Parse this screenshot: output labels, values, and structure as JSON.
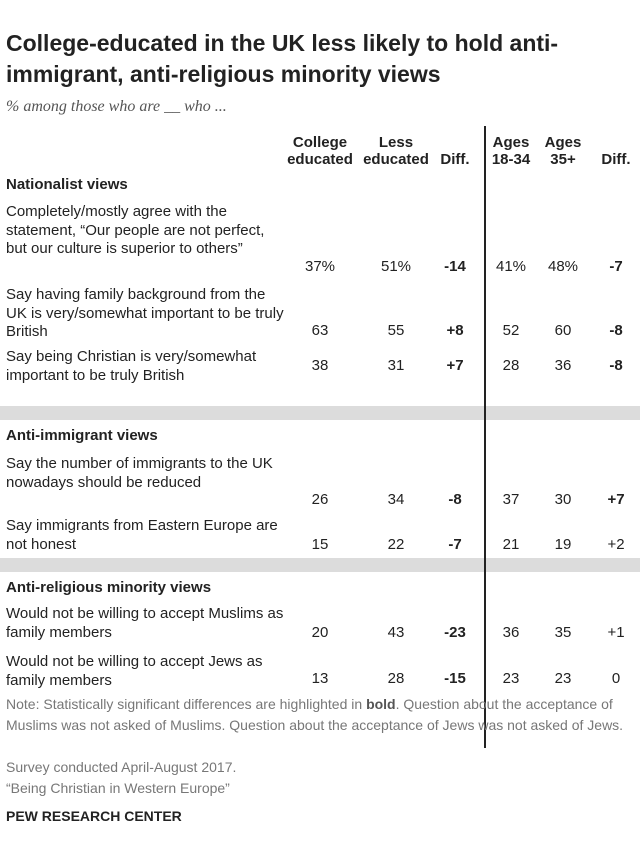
{
  "title": "College-educated in the UK less likely to hold anti-immigrant, anti-religious minority views",
  "subtitle": "% among those who are __ who ...",
  "columns": [
    {
      "l1": "College",
      "l2": "educated"
    },
    {
      "l1": "Less",
      "l2": "educated"
    },
    {
      "l1": "",
      "l2": "Diff."
    },
    {
      "l1": "Ages",
      "l2": "18-34"
    },
    {
      "l1": "Ages",
      "l2": "35+"
    },
    {
      "l1": "",
      "l2": "Diff."
    }
  ],
  "sections": [
    {
      "name": "Nationalist views",
      "rows": [
        {
          "label": "Completely/mostly agree with the statement, “Our people are not perfect, but our culture is superior to others”",
          "values": [
            "37%",
            "51%",
            "-14",
            "41%",
            "48%",
            "-7"
          ],
          "bold": [
            false,
            false,
            true,
            false,
            false,
            true
          ]
        },
        {
          "label": "Say having family background from the UK is very/somewhat important to be truly British",
          "values": [
            "63",
            "55",
            "+8",
            "52",
            "60",
            "-8"
          ],
          "bold": [
            false,
            false,
            true,
            false,
            false,
            true
          ]
        },
        {
          "label": "Say being Christian is very/somewhat important to be truly British",
          "values": [
            "38",
            "31",
            "+7",
            "28",
            "36",
            "-8"
          ],
          "bold": [
            false,
            false,
            true,
            false,
            false,
            true
          ]
        }
      ]
    },
    {
      "name": "Anti-immigrant views",
      "rows": [
        {
          "label": "Say the number of immigrants to the UK nowadays should be reduced",
          "values": [
            "26",
            "34",
            "-8",
            "37",
            "30",
            "+7"
          ],
          "bold": [
            false,
            false,
            true,
            false,
            false,
            true
          ]
        },
        {
          "label": "Say immigrants from Eastern Europe are not honest",
          "values": [
            "15",
            "22",
            "-7",
            "21",
            "19",
            "+2"
          ],
          "bold": [
            false,
            false,
            true,
            false,
            false,
            false
          ]
        }
      ]
    },
    {
      "name": "Anti-religious minority views",
      "rows": [
        {
          "label": "Would not be willing to accept Muslims as family members",
          "values": [
            "20",
            "43",
            "-23",
            "36",
            "35",
            "+1"
          ],
          "bold": [
            false,
            false,
            true,
            false,
            false,
            false
          ]
        },
        {
          "label": "Would not be willing to accept Jews as family members",
          "values": [
            "13",
            "28",
            "-15",
            "23",
            "23",
            "0"
          ],
          "bold": [
            false,
            false,
            true,
            false,
            false,
            false
          ]
        }
      ]
    }
  ],
  "note": {
    "before_bold": "Note: Statistically significant differences are highlighted in ",
    "bold_word": "bold",
    "after_bold": ". Question about the acceptance of Muslims was not asked of Muslims. Question about the acceptance of Jews was not asked of Jews."
  },
  "survey": "Survey conducted April-August 2017.",
  "report": "“Being Christian in Western Europe”",
  "source": "PEW RESEARCH CENTER",
  "chart_data": {
    "type": "table",
    "title": "College-educated in the UK less likely to hold anti-immigrant, anti-religious minority views",
    "subtitle": "% among those who are __ who ...",
    "columns": [
      "College educated",
      "Less educated",
      "Diff.",
      "Ages 18-34",
      "Ages 35+",
      "Diff."
    ],
    "rows": [
      {
        "section": "Nationalist views",
        "label": "Completely/mostly agree with the statement, “Our people are not perfect, but our culture is superior to others”",
        "values": [
          37,
          51,
          -14,
          41,
          48,
          -7
        ]
      },
      {
        "section": "Nationalist views",
        "label": "Say having family background from the UK is very/somewhat important to be truly British",
        "values": [
          63,
          55,
          8,
          52,
          60,
          -8
        ]
      },
      {
        "section": "Nationalist views",
        "label": "Say being Christian is very/somewhat important to be truly British",
        "values": [
          38,
          31,
          7,
          28,
          36,
          -8
        ]
      },
      {
        "section": "Anti-immigrant views",
        "label": "Say the number of immigrants to the UK nowadays should be reduced",
        "values": [
          26,
          34,
          -8,
          37,
          30,
          7
        ]
      },
      {
        "section": "Anti-immigrant views",
        "label": "Say immigrants from Eastern Europe are not honest",
        "values": [
          15,
          22,
          -7,
          21,
          19,
          2
        ]
      },
      {
        "section": "Anti-religious minority views",
        "label": "Would not be willing to accept Muslims as family members",
        "values": [
          20,
          43,
          -23,
          36,
          35,
          1
        ]
      },
      {
        "section": "Anti-religious minority views",
        "label": "Would not be willing to accept Jews as family members",
        "values": [
          13,
          28,
          -15,
          23,
          23,
          0
        ]
      }
    ]
  }
}
